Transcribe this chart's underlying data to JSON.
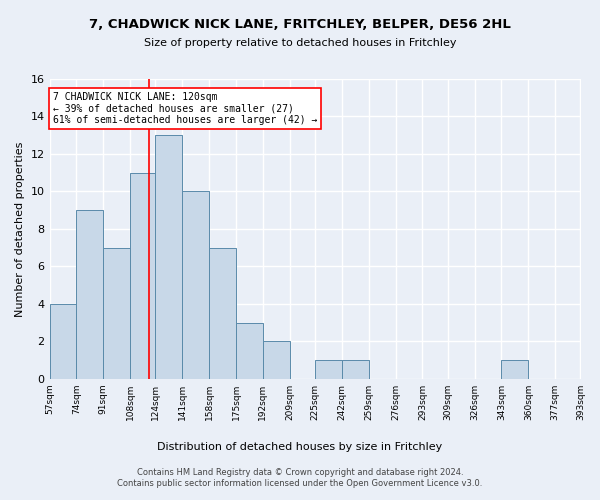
{
  "title1": "7, CHADWICK NICK LANE, FRITCHLEY, BELPER, DE56 2HL",
  "title2": "Size of property relative to detached houses in Fritchley",
  "xlabel": "Distribution of detached houses by size in Fritchley",
  "ylabel": "Number of detached properties",
  "bin_edges": [
    57,
    74,
    91,
    108,
    124,
    141,
    158,
    175,
    192,
    209,
    225,
    242,
    259,
    276,
    293,
    309,
    326,
    343,
    360,
    377,
    393
  ],
  "bar_heights": [
    4,
    9,
    7,
    11,
    13,
    10,
    7,
    3,
    2,
    0,
    1,
    1,
    0,
    0,
    0,
    0,
    0,
    1,
    0,
    0
  ],
  "bar_color": "#c8d8e8",
  "bar_edge_color": "#5a8aaa",
  "ref_line_x": 120,
  "ref_line_color": "red",
  "annotation_text": "7 CHADWICK NICK LANE: 120sqm\n← 39% of detached houses are smaller (27)\n61% of semi-detached houses are larger (42) →",
  "annotation_box_color": "white",
  "annotation_box_edge": "red",
  "ylim": [
    0,
    16
  ],
  "yticks": [
    0,
    2,
    4,
    6,
    8,
    10,
    12,
    14,
    16
  ],
  "footer_text": "Contains HM Land Registry data © Crown copyright and database right 2024.\nContains public sector information licensed under the Open Government Licence v3.0.",
  "background_color": "#eaeff7",
  "grid_color": "white"
}
